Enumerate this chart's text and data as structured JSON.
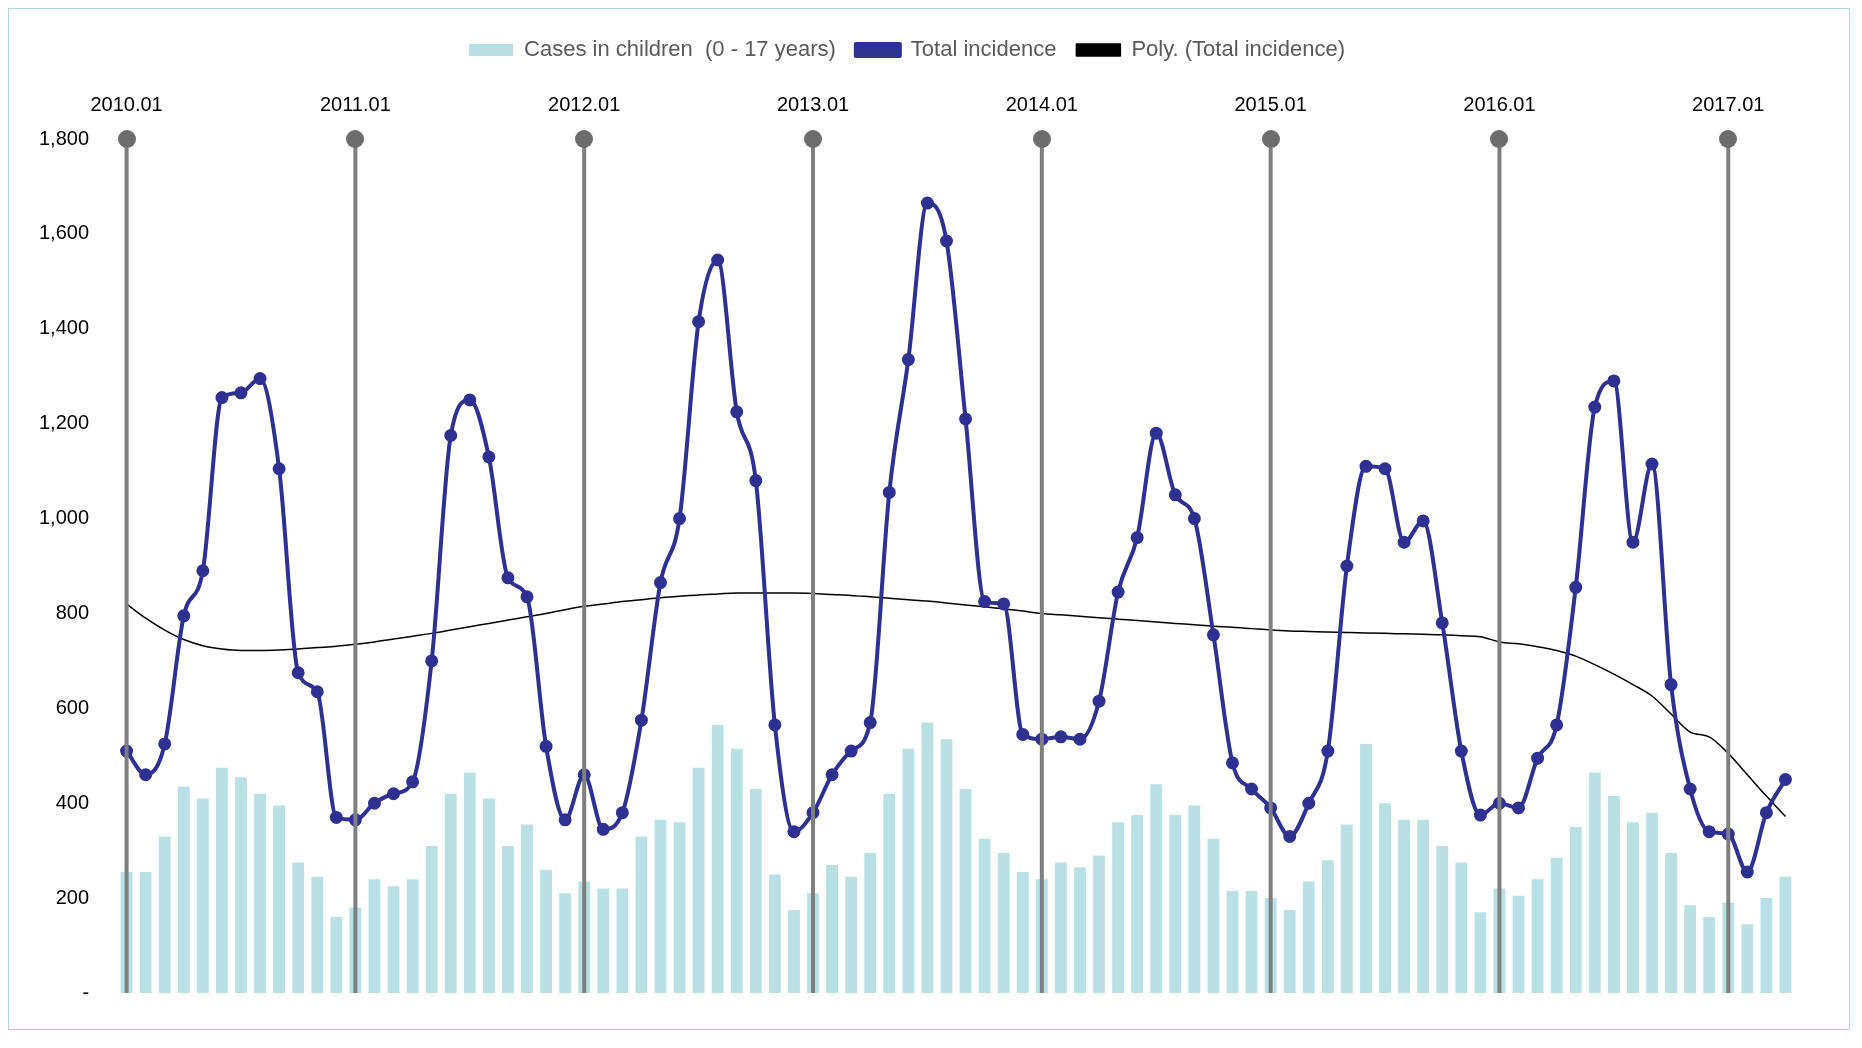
{
  "chart_data": {
    "type": "bar",
    "categories": [
      "2010.01",
      null,
      null,
      null,
      null,
      null,
      null,
      null,
      null,
      null,
      null,
      null,
      "2011.01",
      null,
      null,
      null,
      null,
      null,
      null,
      null,
      null,
      null,
      null,
      null,
      "2012.01",
      null,
      null,
      null,
      null,
      null,
      null,
      null,
      null,
      null,
      null,
      null,
      "2013.01",
      null,
      null,
      null,
      null,
      null,
      null,
      null,
      null,
      null,
      null,
      null,
      "2014.01",
      null,
      null,
      null,
      null,
      null,
      null,
      null,
      null,
      null,
      null,
      null,
      "2015.01",
      null,
      null,
      null,
      null,
      null,
      null,
      null,
      null,
      null,
      null,
      null,
      "2016.01",
      null,
      null,
      null,
      null,
      null,
      null,
      null,
      null,
      null,
      null,
      null,
      "2017.01",
      null,
      null,
      null
    ],
    "series": [
      {
        "name": "Cases in children  (0 - 17 years)",
        "color": "#b9e0e5",
        "values": [
          255,
          255,
          330,
          435,
          410,
          475,
          455,
          420,
          395,
          275,
          245,
          160,
          180,
          240,
          225,
          240,
          310,
          420,
          465,
          410,
          310,
          355,
          260,
          210,
          235,
          220,
          220,
          330,
          365,
          360,
          475,
          565,
          515,
          430,
          250,
          175,
          210,
          270,
          245,
          295,
          420,
          515,
          570,
          535,
          430,
          325,
          295,
          255,
          240,
          275,
          265,
          290,
          360,
          375,
          440,
          375,
          395,
          325,
          215,
          215,
          200,
          175,
          235,
          280,
          355,
          525,
          400,
          365,
          365,
          310,
          275,
          170,
          220,
          205,
          240,
          285,
          350,
          465,
          415,
          360,
          380,
          295,
          185,
          160,
          190,
          145,
          200,
          245
        ]
      },
      {
        "name": "Total incidence",
        "type": "line",
        "color": "#2e3192",
        "marker": "circle",
        "values": [
          510,
          460,
          525,
          795,
          890,
          1255,
          1265,
          1295,
          1105,
          675,
          635,
          370,
          365,
          400,
          420,
          445,
          700,
          1175,
          1250,
          1130,
          875,
          835,
          520,
          365,
          460,
          345,
          380,
          575,
          865,
          1000,
          1415,
          1545,
          1225,
          1080,
          565,
          340,
          380,
          460,
          510,
          570,
          1055,
          1335,
          1665,
          1585,
          1210,
          825,
          820,
          545,
          535,
          540,
          535,
          615,
          845,
          960,
          1180,
          1050,
          1000,
          755,
          485,
          430,
          390,
          330,
          400,
          510,
          900,
          1110,
          1105,
          950,
          995,
          780,
          510,
          375,
          400,
          390,
          495,
          565,
          855,
          1235,
          1290,
          950,
          1115,
          650,
          430,
          340,
          335,
          255,
          380,
          450
        ]
      },
      {
        "name": "Poly. (Total incidence)",
        "type": "line",
        "color": "#000000",
        "marker": "none",
        "values": [
          820,
          790,
          765,
          745,
          732,
          725,
          722,
          722,
          723,
          725,
          728,
          731,
          735,
          740,
          746,
          752,
          758,
          765,
          772,
          779,
          786,
          793,
          800,
          808,
          815,
          820,
          825,
          829,
          833,
          836,
          839,
          841,
          843,
          843,
          843,
          843,
          842,
          840,
          838,
          835,
          832,
          829,
          826,
          822,
          818,
          814,
          810,
          805,
          800,
          797,
          794,
          791,
          788,
          785,
          782,
          779,
          776,
          773,
          771,
          768,
          765,
          763,
          762,
          761,
          760,
          759,
          758,
          757,
          756,
          755,
          753,
          751,
          740,
          736,
          730,
          722,
          710,
          692,
          672,
          650,
          626,
          588,
          550,
          540,
          505,
          460,
          415,
          372
        ]
      }
    ],
    "ylim": [
      0,
      1800
    ],
    "yticks": [
      {
        "value": 0,
        "label": "-"
      },
      200,
      400,
      600,
      800,
      {
        "value": 1000,
        "label": "1,000"
      },
      {
        "value": 1200,
        "label": "1,200"
      },
      {
        "value": 1400,
        "label": "1,400"
      },
      {
        "value": 1600,
        "label": "1,600"
      },
      {
        "value": 1800,
        "label": "1,800"
      }
    ],
    "ref_lines": [
      {
        "axis": "x",
        "value": "2010.01",
        "color": "#7f7f7f"
      },
      {
        "axis": "x",
        "value": "2011.01",
        "color": "#7f7f7f"
      },
      {
        "axis": "x",
        "value": "2012.01",
        "color": "#7f7f7f"
      },
      {
        "axis": "x",
        "value": "2013.01",
        "color": "#7f7f7f"
      },
      {
        "axis": "x",
        "value": "2014.01",
        "color": "#7f7f7f"
      },
      {
        "axis": "x",
        "value": "2015.01",
        "color": "#7f7f7f"
      },
      {
        "axis": "x",
        "value": "2016.01",
        "color": "#7f7f7f"
      },
      {
        "axis": "x",
        "value": "2017.01",
        "color": "#7f7f7f"
      }
    ],
    "grid": false,
    "legend": "top"
  }
}
